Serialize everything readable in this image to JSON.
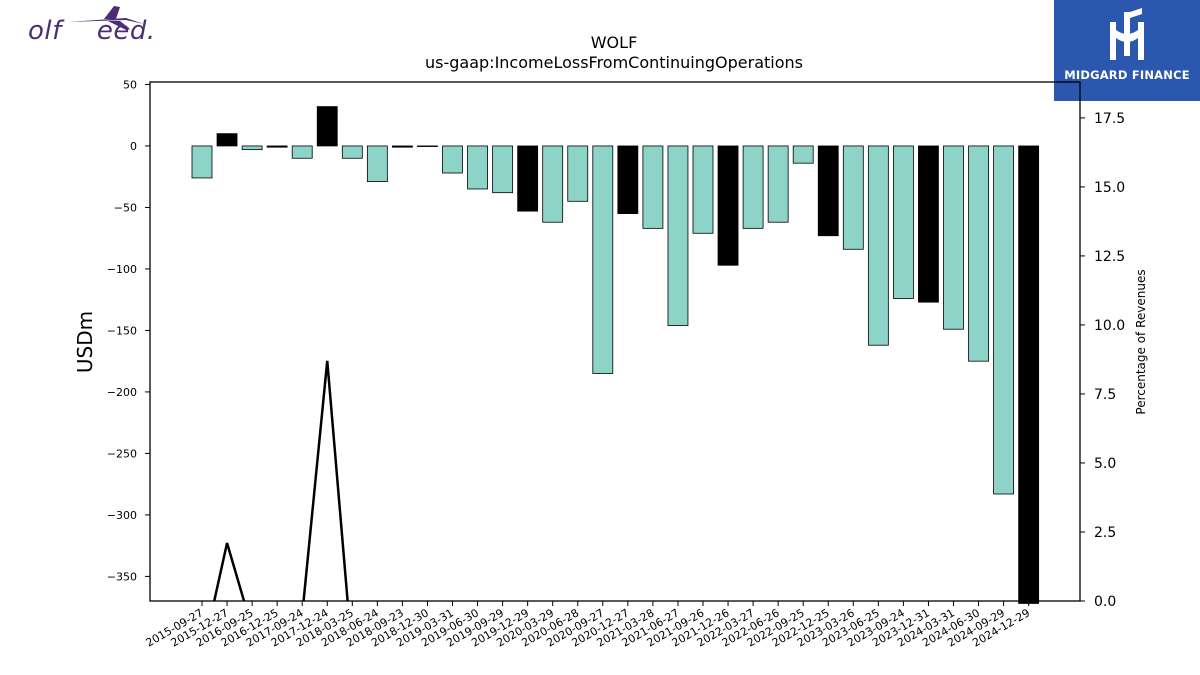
{
  "brand_left": {
    "text": "olf    eed.",
    "icon": "plane-icon"
  },
  "brand_right": {
    "name": "MIDGARD FINANCE",
    "icon": "midgard-logo-icon",
    "color": "#2b57ae"
  },
  "chart_data": {
    "type": "bar",
    "title": "WOLF",
    "subtitle": "us-gaap:IncomeLossFromContinuingOperations",
    "ylabel": "USDm",
    "y2label": "Percentage of Revenues",
    "ylim": [
      -370,
      52
    ],
    "y2lim": [
      0,
      18.8
    ],
    "yticks": [
      50,
      0,
      -50,
      -100,
      -150,
      -200,
      -250,
      -300,
      -350
    ],
    "yticklabels": [
      "50",
      "0",
      "−50",
      "−100",
      "−150",
      "−200",
      "−250",
      "−300",
      "−350"
    ],
    "y2ticks": [
      0,
      2.5,
      5,
      7.5,
      10,
      12.5,
      15,
      17.5
    ],
    "y2ticklabels": [
      "0.0",
      "2.5",
      "5.0",
      "7.5",
      "10.0",
      "12.5",
      "15.0",
      "17.5"
    ],
    "categories": [
      "2015-09-27",
      "2015-12-27",
      "2016-09-25",
      "2016-12-25",
      "2017-09-24",
      "2017-12-24",
      "2018-03-25",
      "2018-06-24",
      "2018-09-23",
      "2018-12-30",
      "2019-03-31",
      "2019-06-30",
      "2019-09-29",
      "2019-12-29",
      "2020-03-29",
      "2020-06-28",
      "2020-09-27",
      "2020-12-27",
      "2021-03-28",
      "2021-06-27",
      "2021-09-26",
      "2021-12-26",
      "2022-03-27",
      "2022-06-26",
      "2022-09-25",
      "2022-12-25",
      "2023-03-26",
      "2023-06-25",
      "2023-09-24",
      "2023-12-31",
      "2024-03-31",
      "2024-06-30",
      "2024-09-29",
      "2024-12-29"
    ],
    "values": [
      -26,
      10,
      -3,
      -1,
      -10,
      32,
      -10,
      -29,
      -1,
      0,
      -22,
      -35,
      -38,
      -53,
      -62,
      -45,
      -185,
      -55,
      -67,
      -146,
      -71,
      -97,
      -67,
      -62,
      -14,
      -73,
      -84,
      -162,
      -124,
      -127,
      -149,
      -175,
      -283,
      -372
    ],
    "colors": [
      "#8dd3c7",
      "#000000",
      "#8dd3c7",
      "#000000",
      "#8dd3c7",
      "#000000",
      "#8dd3c7",
      "#8dd3c7",
      "#000000",
      "#8dd3c7",
      "#8dd3c7",
      "#8dd3c7",
      "#8dd3c7",
      "#000000",
      "#8dd3c7",
      "#8dd3c7",
      "#8dd3c7",
      "#000000",
      "#8dd3c7",
      "#8dd3c7",
      "#8dd3c7",
      "#000000",
      "#8dd3c7",
      "#8dd3c7",
      "#8dd3c7",
      "#000000",
      "#8dd3c7",
      "#8dd3c7",
      "#8dd3c7",
      "#000000",
      "#8dd3c7",
      "#8dd3c7",
      "#8dd3c7",
      "#000000"
    ],
    "line_values": [
      -2,
      2.1,
      -1,
      -2,
      -0.5,
      8.7,
      -2,
      -2,
      -2,
      -2,
      -2,
      -2,
      -2,
      -2,
      -2,
      -2,
      -2,
      -2,
      -2,
      -2,
      -2,
      -2,
      -2,
      -2,
      -2,
      -2,
      -2,
      -2,
      -2,
      -2,
      -2,
      -2,
      -2,
      -2
    ],
    "bar_color": "#8dd3c7",
    "highlight_color": "#000000",
    "grid": false,
    "legend": "none"
  }
}
